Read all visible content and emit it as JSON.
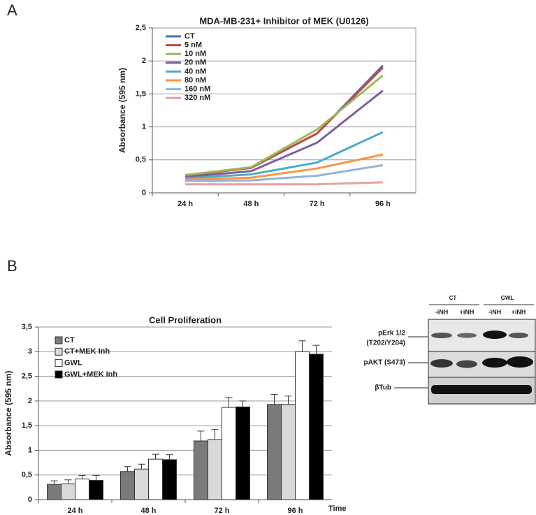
{
  "panels": [
    "A",
    "B"
  ],
  "chart_data": [
    {
      "type": "line",
      "title": "MDA-MB-231+ Inhibitor of MEK (U0126)",
      "y_label": "Absorbance (595 nm)",
      "categories": [
        "24 h",
        "48 h",
        "72 h",
        "96 h"
      ],
      "ylim": [
        0,
        2.5
      ],
      "yticks": [
        0,
        {
          "value": 0.5,
          "label": "0,5"
        },
        1,
        {
          "value": 1.5,
          "label": "1,5"
        },
        2,
        {
          "value": 2.5,
          "label": "2,5"
        }
      ],
      "grid": true,
      "series": [
        {
          "name": "CT",
          "color": "#4a6fb5",
          "values": [
            0.27,
            0.38,
            0.9,
            1.93
          ]
        },
        {
          "name": "5 nM",
          "color": "#be4b48",
          "values": [
            0.26,
            0.38,
            0.9,
            1.9
          ]
        },
        {
          "name": "10 nM",
          "color": "#9bbb59",
          "values": [
            0.27,
            0.39,
            0.96,
            1.78
          ]
        },
        {
          "name": "20 nM",
          "color": "#7d5fa0",
          "values": [
            0.24,
            0.33,
            0.76,
            1.55
          ]
        },
        {
          "name": "40 nM",
          "color": "#4bacc6",
          "values": [
            0.22,
            0.28,
            0.46,
            0.92
          ]
        },
        {
          "name": "80 nM",
          "color": "#f79646",
          "values": [
            0.2,
            0.23,
            0.37,
            0.58
          ]
        },
        {
          "name": "160 nM",
          "color": "#95b3d7",
          "values": [
            0.18,
            0.19,
            0.26,
            0.42
          ]
        },
        {
          "name": "320 nM",
          "color": "#e6a0a0",
          "values": [
            0.13,
            0.13,
            0.13,
            0.16
          ]
        }
      ]
    },
    {
      "type": "bar",
      "title": "Cell Proliferation",
      "y_label": "Absorbance (595 nm)",
      "x_label": "Time",
      "categories": [
        "24 h",
        "48 h",
        "72 h",
        "96 h"
      ],
      "ylim": [
        0,
        3.5
      ],
      "yticks": [
        0,
        {
          "value": 0.5,
          "label": "0,5"
        },
        1,
        {
          "value": 1.5,
          "label": "1,5"
        },
        2,
        {
          "value": 2.5,
          "label": "2,5"
        },
        3,
        {
          "value": 3.5,
          "label": "3,5"
        }
      ],
      "grid": true,
      "series": [
        {
          "name": "CT",
          "color": "#7a7a7a",
          "values": [
            0.31,
            0.57,
            1.19,
            1.93
          ],
          "errors": [
            0.07,
            0.1,
            0.2,
            0.2
          ]
        },
        {
          "name": "CT+MEK Inh",
          "color": "#d9d9d9",
          "values": [
            0.32,
            0.62,
            1.22,
            1.93
          ],
          "errors": [
            0.08,
            0.1,
            0.2,
            0.17
          ]
        },
        {
          "name": "GWL",
          "color": "#ffffff",
          "values": [
            0.42,
            0.82,
            1.87,
            3.0
          ],
          "errors": [
            0.07,
            0.1,
            0.2,
            0.22
          ]
        },
        {
          "name": "GWL+MEK Inh",
          "color": "#000000",
          "values": [
            0.39,
            0.81,
            1.88,
            2.95
          ],
          "errors": [
            0.1,
            0.1,
            0.12,
            0.18
          ]
        }
      ]
    }
  ],
  "blot": {
    "groups": [
      "CT",
      "GWL"
    ],
    "lanes": [
      "-iNH",
      "+iNH",
      "-iNH",
      "+iNH"
    ],
    "rows": [
      "pErk 1/2",
      "(T202/Y204)",
      "pAKT (S473)",
      "βTub"
    ]
  }
}
